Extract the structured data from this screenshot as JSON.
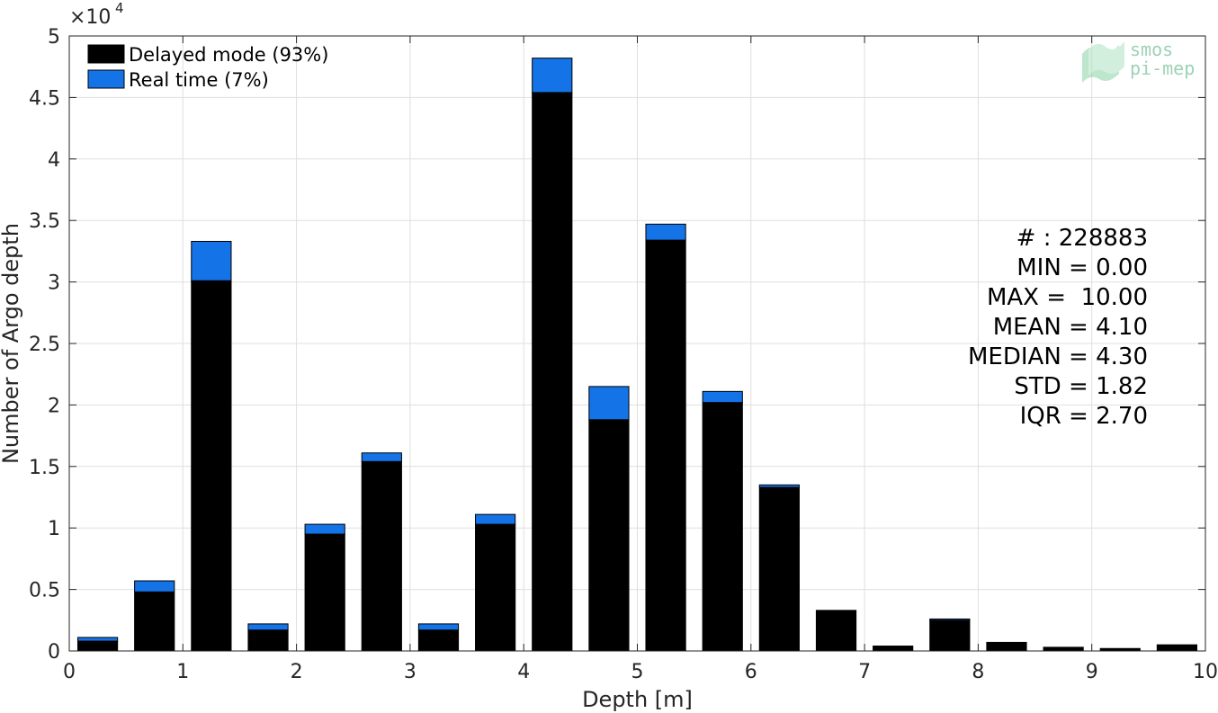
{
  "chart_data": {
    "type": "bar",
    "stacked": true,
    "xlabel": "Depth [m]",
    "ylabel": "Number of Argo depth",
    "y_exponent_label": "×10",
    "y_exponent_power": "4",
    "xlim": [
      0,
      10
    ],
    "ylim": [
      0,
      50000
    ],
    "x_ticks": [
      0,
      1,
      2,
      3,
      4,
      5,
      6,
      7,
      8,
      9,
      10
    ],
    "x_tick_labels": [
      "0",
      "1",
      "2",
      "3",
      "4",
      "5",
      "6",
      "7",
      "8",
      "9",
      "10"
    ],
    "y_ticks": [
      0,
      5000,
      10000,
      15000,
      20000,
      25000,
      30000,
      35000,
      40000,
      45000,
      50000
    ],
    "y_tick_labels": [
      "0",
      "0.5",
      "1",
      "1.5",
      "2",
      "2.5",
      "3",
      "3.5",
      "4",
      "4.5",
      "5"
    ],
    "grid": true,
    "legend_position": "top-left",
    "bar_width": 0.35,
    "x": [
      0.25,
      0.75,
      1.25,
      1.75,
      2.25,
      2.75,
      3.25,
      3.75,
      4.25,
      4.75,
      5.25,
      5.75,
      6.25,
      6.75,
      7.25,
      7.75,
      8.25,
      8.75,
      9.25,
      9.75
    ],
    "series": [
      {
        "name": "Delayed mode (93%)",
        "color": "#000000",
        "values": [
          800,
          4800,
          30100,
          1700,
          9500,
          15400,
          1700,
          10300,
          45400,
          18800,
          33400,
          20200,
          13300,
          3300,
          400,
          2500,
          700,
          300,
          200,
          500
        ]
      },
      {
        "name": "Real time (7%)",
        "color": "#1473e6",
        "values": [
          300,
          900,
          3200,
          500,
          800,
          700,
          500,
          800,
          2800,
          2700,
          1300,
          900,
          200,
          0,
          0,
          100,
          0,
          0,
          0,
          0
        ]
      }
    ],
    "stats": [
      "# : 228883",
      "MIN = 0.00",
      "MAX =  10.00",
      "MEAN = 4.10",
      "MEDIAN = 4.30",
      "STD = 1.82",
      "IQR = 2.70"
    ],
    "watermark": [
      "smos",
      "pi-mep"
    ]
  }
}
